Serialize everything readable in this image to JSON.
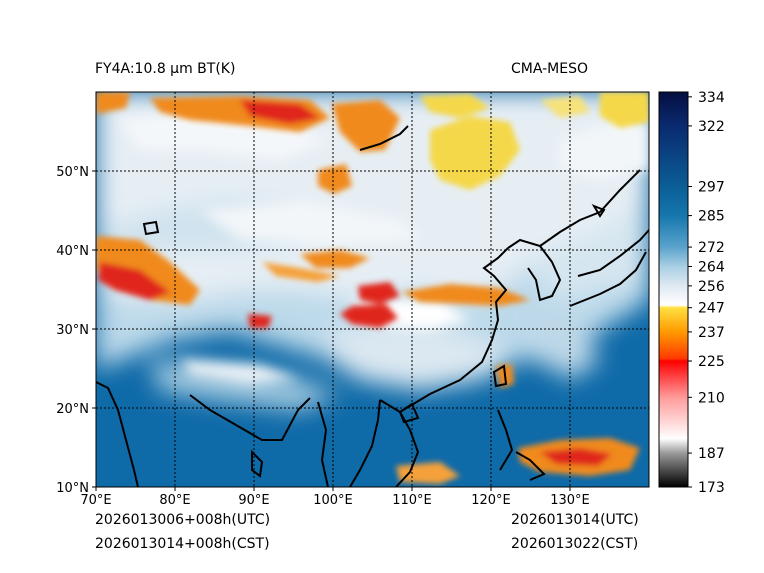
{
  "header": {
    "left_title": "FY4A:10.8 µm BT(K)",
    "right_title": "CMA-MESO"
  },
  "footer": {
    "left_line1": "2026013006+008h(UTC)",
    "left_line2": "2026013014+008h(CST)",
    "right_line1": "2026013014(UTC)",
    "right_line2": "2026013022(CST)"
  },
  "map": {
    "lon_range": [
      70,
      140
    ],
    "lat_range": [
      10,
      60
    ],
    "lon_ticks": [
      {
        "value": 70,
        "label": "70°E"
      },
      {
        "value": 80,
        "label": "80°E"
      },
      {
        "value": 90,
        "label": "90°E"
      },
      {
        "value": 100,
        "label": "100°E"
      },
      {
        "value": 110,
        "label": "110°E"
      },
      {
        "value": 120,
        "label": "120°E"
      },
      {
        "value": 130,
        "label": "130°E"
      }
    ],
    "lat_ticks": [
      {
        "value": 10,
        "label": "10°N"
      },
      {
        "value": 20,
        "label": "20°N"
      },
      {
        "value": 30,
        "label": "30°N"
      },
      {
        "value": 40,
        "label": "40°N"
      },
      {
        "value": 50,
        "label": "50°N"
      }
    ],
    "gridlines": true
  },
  "colorbar": {
    "range": [
      173,
      336
    ],
    "stops": [
      {
        "value": 173,
        "color": "#000000"
      },
      {
        "value": 187,
        "color": "#9a9a9a"
      },
      {
        "value": 193,
        "color": "#ffffff"
      },
      {
        "value": 210,
        "color": "#ff9a9a"
      },
      {
        "value": 225,
        "color": "#ff0000"
      },
      {
        "value": 226,
        "color": "#ff3a00"
      },
      {
        "value": 237,
        "color": "#ff9a00"
      },
      {
        "value": 247,
        "color": "#ffe040"
      },
      {
        "value": 248,
        "color": "#ffffff"
      },
      {
        "value": 256,
        "color": "#dfe9f1"
      },
      {
        "value": 264,
        "color": "#a9cfe3"
      },
      {
        "value": 272,
        "color": "#5aa3cc"
      },
      {
        "value": 285,
        "color": "#1577ad"
      },
      {
        "value": 297,
        "color": "#0b5e96"
      },
      {
        "value": 322,
        "color": "#0a2a70"
      },
      {
        "value": 336,
        "color": "#050e40"
      }
    ],
    "ticks": [
      173,
      187,
      210,
      225,
      237,
      247,
      256,
      264,
      272,
      285,
      297,
      322,
      334
    ]
  },
  "colors": {
    "ocean": "#0f6aa8",
    "land_cloud_light": "#e7eff5",
    "cold_cloud_orange": "#f08a1a",
    "cold_cloud_red": "#e0261a",
    "cirrus_yellow": "#f5d84a"
  }
}
